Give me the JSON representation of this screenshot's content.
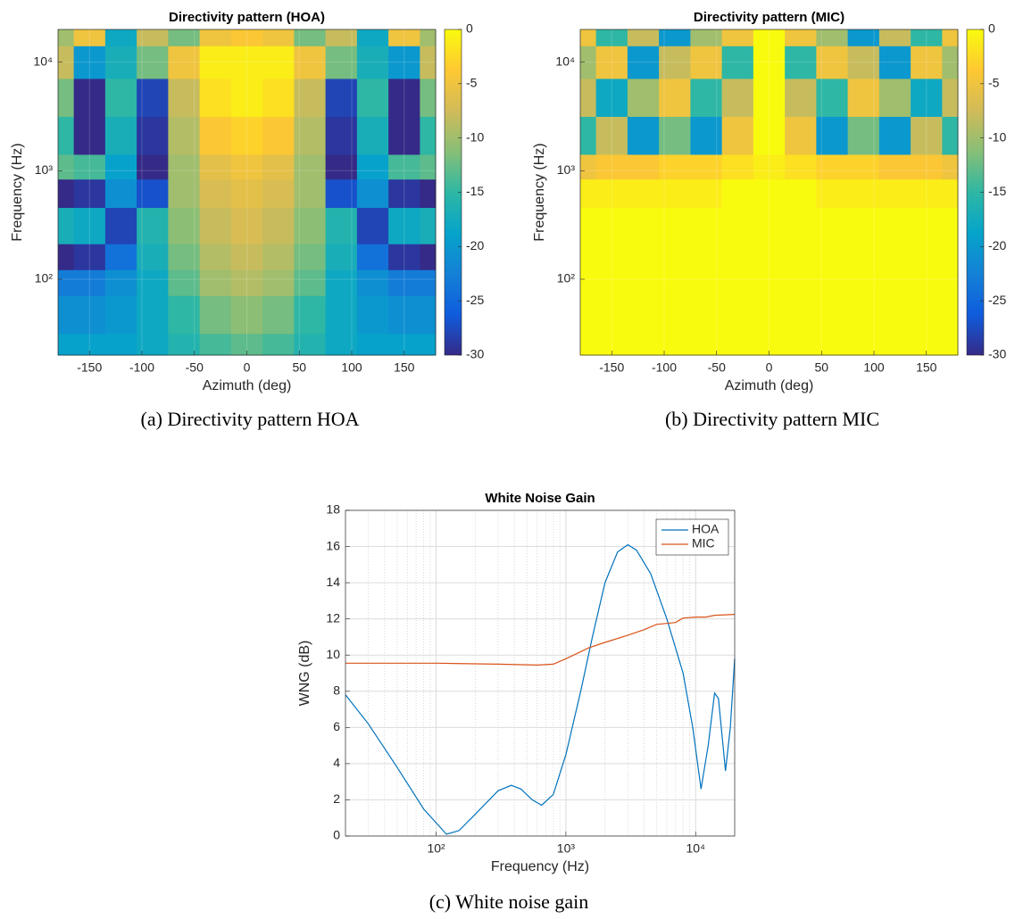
{
  "chart_data": [
    {
      "type": "heatmap",
      "title": "Directivity pattern (HOA)",
      "xlabel": "Azimuth (deg)",
      "ylabel": "Frequency (Hz)",
      "x": [
        -180,
        -150,
        -120,
        -90,
        -60,
        -30,
        0,
        30,
        60,
        90,
        120,
        150,
        180
      ],
      "y": [
        20,
        50,
        100,
        150,
        300,
        700,
        1000,
        2000,
        5000,
        10000,
        20000
      ],
      "z": [
        [
          -19,
          -19,
          -19,
          -18,
          -16,
          -14,
          -13,
          -14,
          -16,
          -18,
          -19,
          -19,
          -19
        ],
        [
          -21,
          -21,
          -20,
          -18,
          -15,
          -12,
          -11,
          -12,
          -15,
          -18,
          -20,
          -21,
          -21
        ],
        [
          -23,
          -23,
          -21,
          -18,
          -13,
          -10,
          -9,
          -10,
          -13,
          -18,
          -21,
          -23,
          -23
        ],
        [
          -30,
          -29,
          -24,
          -17,
          -12,
          -9,
          -8,
          -9,
          -12,
          -17,
          -24,
          -29,
          -30
        ],
        [
          -17,
          -18,
          -28,
          -16,
          -11,
          -8,
          -7,
          -8,
          -11,
          -16,
          -28,
          -18,
          -17
        ],
        [
          -30,
          -29,
          -21,
          -27,
          -10,
          -7,
          -6,
          -7,
          -10,
          -27,
          -21,
          -29,
          -30
        ],
        [
          -13,
          -14,
          -19,
          -30,
          -10,
          -6,
          -5,
          -6,
          -10,
          -30,
          -19,
          -14,
          -13
        ],
        [
          -15,
          -30,
          -17,
          -29,
          -9,
          -4,
          -3,
          -4,
          -9,
          -29,
          -17,
          -30,
          -15
        ],
        [
          -12,
          -30,
          -15,
          -28,
          -8,
          -2,
          -1,
          -2,
          -8,
          -28,
          -15,
          -30,
          -12
        ],
        [
          -8,
          -20,
          -17,
          -12,
          -5,
          -1,
          -1,
          -1,
          -5,
          -12,
          -17,
          -20,
          -8
        ],
        [
          -10,
          -5,
          -18,
          -8,
          -12,
          -5,
          -4,
          -5,
          -12,
          -8,
          -18,
          -5,
          -10
        ]
      ],
      "xlim": [
        -180,
        180
      ],
      "xticks": [
        -150,
        -100,
        -50,
        0,
        50,
        100,
        150
      ],
      "ylim": [
        20,
        20000
      ],
      "ylog": true,
      "yticks": [
        {
          "value": 100,
          "label": "10²"
        },
        {
          "value": 1000,
          "label": "10³"
        },
        {
          "value": 10000,
          "label": "10⁴"
        }
      ],
      "zlim": [
        -30,
        0
      ],
      "zticks": [
        0,
        -5,
        -10,
        -15,
        -20,
        -25,
        -30
      ],
      "colormap": [
        "#352a87",
        "#0f5cdd",
        "#1481d6",
        "#06a4ca",
        "#2eb7a4",
        "#87bf77",
        "#d1bb59",
        "#fec832",
        "#f9fb0e"
      ]
    },
    {
      "type": "heatmap",
      "title": "Directivity pattern (MIC)",
      "xlabel": "Azimuth (deg)",
      "ylabel": "Frequency (Hz)",
      "x": [
        -180,
        -150,
        -120,
        -90,
        -60,
        -30,
        0,
        30,
        60,
        90,
        120,
        150,
        180
      ],
      "y": [
        20,
        50,
        100,
        150,
        300,
        700,
        1000,
        2000,
        5000,
        10000,
        20000
      ],
      "z": [
        [
          0,
          0,
          0,
          0,
          0,
          0,
          0,
          0,
          0,
          0,
          0,
          0,
          0
        ],
        [
          0,
          0,
          0,
          0,
          0,
          0,
          0,
          0,
          0,
          0,
          0,
          0,
          0
        ],
        [
          0,
          0,
          0,
          0,
          0,
          0,
          0,
          0,
          0,
          0,
          0,
          0,
          0
        ],
        [
          0,
          0,
          0,
          0,
          0,
          0,
          0,
          0,
          0,
          0,
          0,
          0,
          0
        ],
        [
          0,
          0,
          0,
          0,
          0,
          0,
          0,
          0,
          0,
          0,
          0,
          0,
          0
        ],
        [
          -1,
          -1,
          -1,
          -1,
          -1,
          0,
          0,
          0,
          -1,
          -1,
          -1,
          -1,
          -1
        ],
        [
          -5,
          -4,
          -4,
          -3,
          -3,
          -2,
          -1,
          -2,
          -3,
          -3,
          -4,
          -4,
          -5
        ],
        [
          -15,
          -8,
          -20,
          -12,
          -20,
          -5,
          0,
          -5,
          -20,
          -12,
          -20,
          -8,
          -15
        ],
        [
          -8,
          -18,
          -10,
          -5,
          -15,
          -8,
          0,
          -8,
          -15,
          -5,
          -10,
          -18,
          -8
        ],
        [
          -10,
          -5,
          -20,
          -8,
          -5,
          -15,
          0,
          -15,
          -5,
          -8,
          -20,
          -5,
          -10
        ],
        [
          -5,
          -15,
          -8,
          -20,
          -10,
          -5,
          0,
          -5,
          -10,
          -20,
          -8,
          -15,
          -5
        ]
      ],
      "xlim": [
        -180,
        180
      ],
      "xticks": [
        -150,
        -100,
        -50,
        0,
        50,
        100,
        150
      ],
      "ylim": [
        20,
        20000
      ],
      "ylog": true,
      "yticks": [
        {
          "value": 100,
          "label": "10²"
        },
        {
          "value": 1000,
          "label": "10³"
        },
        {
          "value": 10000,
          "label": "10⁴"
        }
      ],
      "zlim": [
        -30,
        0
      ],
      "zticks": [
        0,
        -5,
        -10,
        -15,
        -20,
        -25,
        -30
      ],
      "colormap": [
        "#352a87",
        "#0f5cdd",
        "#1481d6",
        "#06a4ca",
        "#2eb7a4",
        "#87bf77",
        "#d1bb59",
        "#fec832",
        "#f9fb0e"
      ]
    },
    {
      "type": "line",
      "title": "White Noise Gain",
      "xlabel": "Frequency (Hz)",
      "ylabel": "WNG (dB)",
      "xlim": [
        20,
        20000
      ],
      "xlog": true,
      "xticks": [
        {
          "value": 100,
          "label": "10²"
        },
        {
          "value": 1000,
          "label": "10³"
        },
        {
          "value": 10000,
          "label": "10⁴"
        }
      ],
      "ylim": [
        0,
        18
      ],
      "yticks": [
        0,
        2,
        4,
        6,
        8,
        10,
        12,
        14,
        16,
        18
      ],
      "grid": true,
      "legend": "upper right",
      "series": [
        {
          "name": "HOA",
          "color": "#0072bd",
          "x": [
            20,
            30,
            50,
            80,
            120,
            150,
            200,
            300,
            380,
            450,
            550,
            650,
            800,
            1000,
            1300,
            1600,
            2000,
            2500,
            3000,
            3500,
            4500,
            6000,
            8000,
            9500,
            11000,
            12500,
            14000,
            15000,
            17000,
            18500,
            20000
          ],
          "values": [
            7.8,
            6.2,
            3.8,
            1.5,
            0.1,
            0.3,
            1.2,
            2.5,
            2.8,
            2.6,
            2.0,
            1.7,
            2.3,
            4.5,
            8,
            11,
            14,
            15.7,
            16.1,
            15.8,
            14.5,
            12,
            9,
            6,
            2.6,
            5,
            7.9,
            7.6,
            3.6,
            6,
            9.8
          ]
        },
        {
          "name": "MIC",
          "color": "#d95319",
          "x": [
            20,
            100,
            300,
            600,
            800,
            1000,
            1500,
            2000,
            3000,
            4000,
            5000,
            6000,
            7000,
            8000,
            10000,
            12000,
            14000,
            20000
          ],
          "values": [
            9.55,
            9.55,
            9.5,
            9.45,
            9.5,
            9.8,
            10.4,
            10.7,
            11.1,
            11.4,
            11.7,
            11.75,
            11.8,
            12.05,
            12.1,
            12.1,
            12.2,
            12.25
          ]
        }
      ]
    }
  ],
  "captions": [
    "(a) Directivity pattern HOA",
    "(b) Directivity pattern MIC",
    "(c) White noise gain"
  ]
}
